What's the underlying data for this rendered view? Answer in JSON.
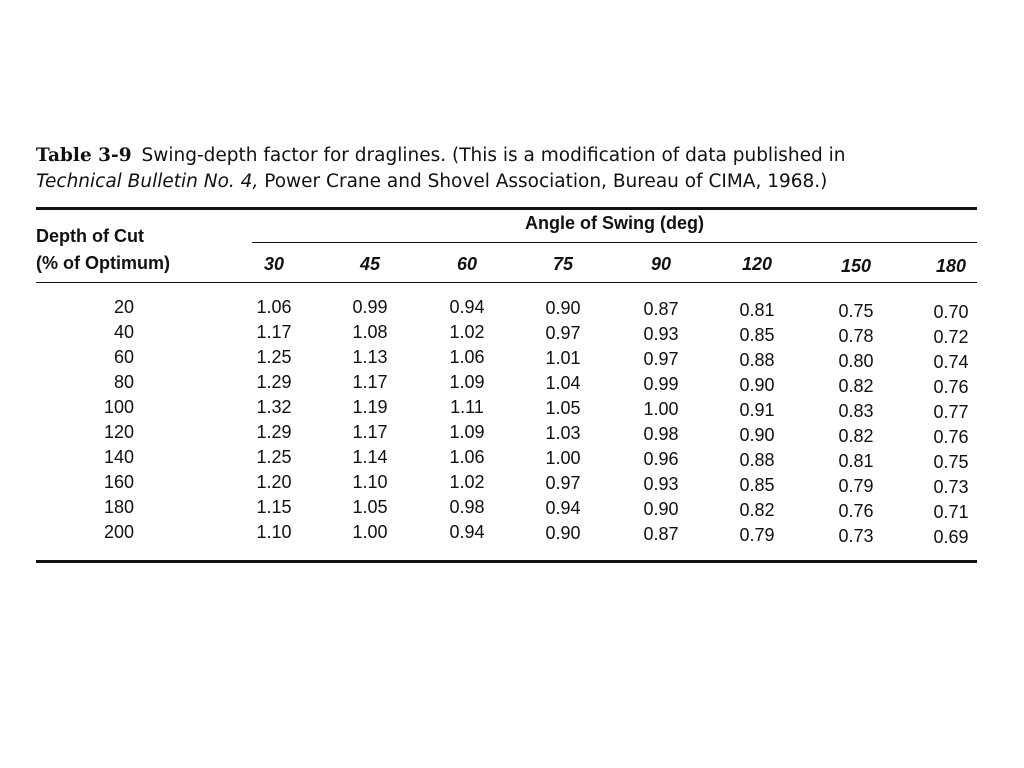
{
  "caption": {
    "label": "Table 3-9",
    "text_a": "Swing-depth factor for draglines. (This is a modification of data published in",
    "italic": "Technical Bulletin No. 4,",
    "text_b": "Power Crane and Shovel Association, Bureau of CIMA, 1968.)"
  },
  "table": {
    "stub_header_line1": "Depth of Cut",
    "stub_header_line2": "(% of Optimum)",
    "spanner": "Angle of Swing (deg)",
    "columns": [
      "30",
      "45",
      "60",
      "75",
      "90",
      "120",
      "150",
      "180"
    ],
    "rows": [
      {
        "depth": "20",
        "values": [
          "1.06",
          "0.99",
          "0.94",
          "0.90",
          "0.87",
          "0.81",
          "0.75",
          "0.70"
        ]
      },
      {
        "depth": "40",
        "values": [
          "1.17",
          "1.08",
          "1.02",
          "0.97",
          "0.93",
          "0.85",
          "0.78",
          "0.72"
        ]
      },
      {
        "depth": "60",
        "values": [
          "1.25",
          "1.13",
          "1.06",
          "1.01",
          "0.97",
          "0.88",
          "0.80",
          "0.74"
        ]
      },
      {
        "depth": "80",
        "values": [
          "1.29",
          "1.17",
          "1.09",
          "1.04",
          "0.99",
          "0.90",
          "0.82",
          "0.76"
        ]
      },
      {
        "depth": "100",
        "values": [
          "1.32",
          "1.19",
          "1.11",
          "1.05",
          "1.00",
          "0.91",
          "0.83",
          "0.77"
        ]
      },
      {
        "depth": "120",
        "values": [
          "1.29",
          "1.17",
          "1.09",
          "1.03",
          "0.98",
          "0.90",
          "0.82",
          "0.76"
        ]
      },
      {
        "depth": "140",
        "values": [
          "1.25",
          "1.14",
          "1.06",
          "1.00",
          "0.96",
          "0.88",
          "0.81",
          "0.75"
        ]
      },
      {
        "depth": "160",
        "values": [
          "1.20",
          "1.10",
          "1.02",
          "0.97",
          "0.93",
          "0.85",
          "0.79",
          "0.73"
        ]
      },
      {
        "depth": "180",
        "values": [
          "1.15",
          "1.05",
          "0.98",
          "0.94",
          "0.90",
          "0.82",
          "0.76",
          "0.71"
        ]
      },
      {
        "depth": "200",
        "values": [
          "1.10",
          "1.00",
          "0.94",
          "0.90",
          "0.87",
          "0.79",
          "0.73",
          "0.69"
        ]
      }
    ]
  }
}
